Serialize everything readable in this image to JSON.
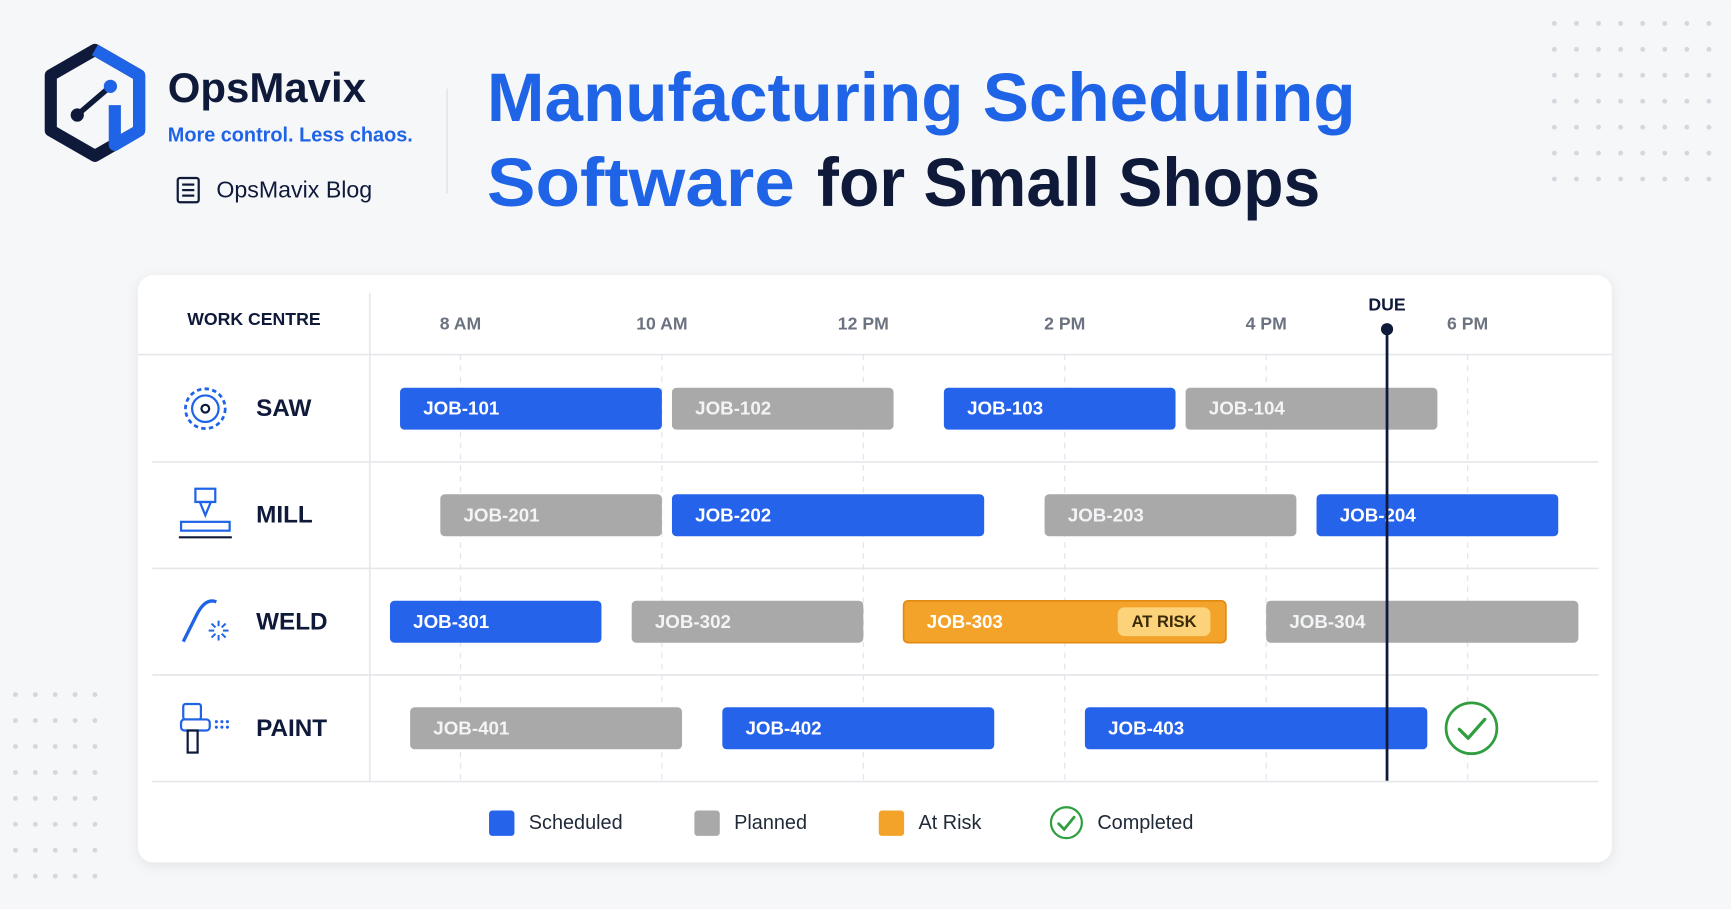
{
  "header": {
    "brand": "OpsMavix",
    "tagline": "More control. Less chaos.",
    "blog": "OpsMavix Blog",
    "title_line1": "Manufacturing Scheduling",
    "title_line2_highlight": "Software",
    "title_line2_rest": "for Small Shops"
  },
  "chart_data": {
    "type": "gantt",
    "row_header": "WORK CENTRE",
    "xlim": [
      7.1,
      19.3
    ],
    "xticks": [
      {
        "value": 8,
        "label": "8 AM"
      },
      {
        "value": 10,
        "label": "10 AM"
      },
      {
        "value": 12,
        "label": "12 PM"
      },
      {
        "value": 14,
        "label": "2 PM"
      },
      {
        "value": 16,
        "label": "4 PM"
      },
      {
        "value": 18,
        "label": "6 PM"
      }
    ],
    "grid": true,
    "due": {
      "label": "DUE",
      "value": 17.2
    },
    "legend": [
      {
        "name": "Scheduled",
        "color": "#2563eb"
      },
      {
        "name": "Planned",
        "color": "#a9a9a9"
      },
      {
        "name": "At Risk",
        "color": "#f4a32a"
      },
      {
        "name": "Completed",
        "color": "#2e9e3e"
      }
    ],
    "rows": [
      {
        "name": "SAW",
        "jobs": [
          {
            "label": "JOB-101",
            "start": 7.4,
            "end": 10.0,
            "status": "Scheduled"
          },
          {
            "label": "JOB-102",
            "start": 10.1,
            "end": 12.3,
            "status": "Planned"
          },
          {
            "label": "JOB-103",
            "start": 12.8,
            "end": 15.1,
            "status": "Scheduled"
          },
          {
            "label": "JOB-104",
            "start": 15.2,
            "end": 17.7,
            "status": "Planned"
          }
        ]
      },
      {
        "name": "MILL",
        "jobs": [
          {
            "label": "JOB-201",
            "start": 7.8,
            "end": 10.0,
            "status": "Planned"
          },
          {
            "label": "JOB-202",
            "start": 10.1,
            "end": 13.2,
            "status": "Scheduled"
          },
          {
            "label": "JOB-203",
            "start": 13.8,
            "end": 16.3,
            "status": "Planned"
          },
          {
            "label": "JOB-204",
            "start": 16.5,
            "end": 18.9,
            "status": "Scheduled"
          }
        ]
      },
      {
        "name": "WELD",
        "jobs": [
          {
            "label": "JOB-301",
            "start": 7.3,
            "end": 9.4,
            "status": "Scheduled"
          },
          {
            "label": "JOB-302",
            "start": 9.7,
            "end": 12.0,
            "status": "Planned"
          },
          {
            "label": "JOB-303",
            "start": 12.4,
            "end": 15.6,
            "status": "At Risk",
            "badge": "AT RISK"
          },
          {
            "label": "JOB-304",
            "start": 16.0,
            "end": 19.1,
            "status": "Planned"
          }
        ]
      },
      {
        "name": "PAINT",
        "jobs": [
          {
            "label": "JOB-401",
            "start": 7.5,
            "end": 10.2,
            "status": "Planned"
          },
          {
            "label": "JOB-402",
            "start": 10.6,
            "end": 13.3,
            "status": "Scheduled"
          },
          {
            "label": "JOB-403",
            "start": 14.2,
            "end": 17.6,
            "status": "Scheduled",
            "completed": true
          }
        ]
      }
    ]
  }
}
